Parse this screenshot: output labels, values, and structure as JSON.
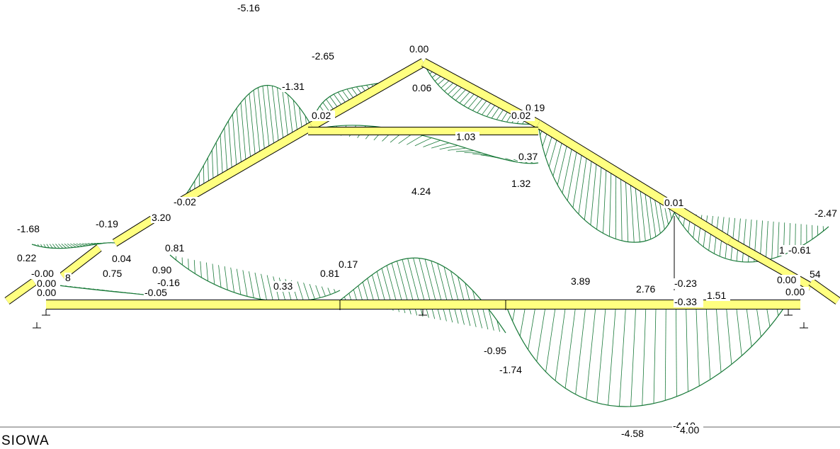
{
  "diagram": {
    "colors": {
      "member_fill": "#ffff80",
      "member_stroke": "#000000",
      "moment_line": "#1a7a3a",
      "label_bg": "#ffffff"
    },
    "labels": [
      {
        "text": "-5.16"
      },
      {
        "text": "-2.65"
      },
      {
        "text": "0.00"
      },
      {
        "text": "-1.31"
      },
      {
        "text": "0.06"
      },
      {
        "text": "0.19"
      },
      {
        "text": "0.02"
      },
      {
        "text": "0.02"
      },
      {
        "text": "1.03"
      },
      {
        "text": "0.37"
      },
      {
        "text": "1.32"
      },
      {
        "text": "4.24"
      },
      {
        "text": "-0.02"
      },
      {
        "text": "0.01"
      },
      {
        "text": "-2.47"
      },
      {
        "text": "-1.68"
      },
      {
        "text": "-0.19"
      },
      {
        "text": "3.20"
      },
      {
        "text": "0.22"
      },
      {
        "text": "0.04"
      },
      {
        "text": "0.81"
      },
      {
        "text": "1"
      },
      {
        "text": "-0.61"
      },
      {
        "text": "-0.00"
      },
      {
        "text": "0.75"
      },
      {
        "text": "0.90"
      },
      {
        "text": "0.17"
      },
      {
        "text": "0.81"
      },
      {
        "text": "0.00"
      },
      {
        "text": "8"
      },
      {
        "text": "-0.16"
      },
      {
        "text": "0.33"
      },
      {
        "text": "3.89"
      },
      {
        "text": "54"
      },
      {
        "text": "0.00"
      },
      {
        "text": "0.00"
      },
      {
        "text": "0.00"
      },
      {
        "text": "-0.05"
      },
      {
        "text": "2.76"
      },
      {
        "text": "-0.23"
      },
      {
        "text": "1.51"
      },
      {
        "text": "-0.33"
      },
      {
        "text": "-0.95"
      },
      {
        "text": "-1.74"
      },
      {
        "text": "-4.10"
      },
      {
        "text": "-4.58"
      },
      {
        "text": "4.00"
      }
    ]
  },
  "footer": {
    "caption": "SIOWA"
  }
}
